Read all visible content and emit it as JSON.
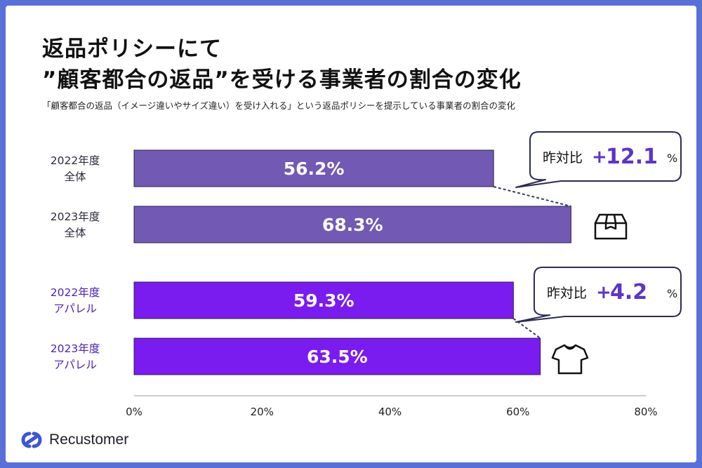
{
  "header": {
    "title_line1": "返品ポリシーにて",
    "title_line2": "”顧客都合の返品”を受ける事業者の割合の変化",
    "subtitle": "「顧客都合の返品（イメージ違いやサイズ違い）を受け入れる」という返品ポリシーを提示している事業者の割合の変化"
  },
  "brand": {
    "name": "Recustomer"
  },
  "colors": {
    "overall_bar": "#7159b4",
    "apparel_bar": "#7a1bf0",
    "overall_label": "#2b2b3c",
    "apparel_label": "#4a21b8",
    "callout_number": "#5b36c9",
    "logo": "#3b55d9"
  },
  "chart_data": {
    "type": "bar",
    "orientation": "horizontal",
    "unit": "%",
    "xlim": [
      0,
      80
    ],
    "ticks": [
      "0%",
      "20%",
      "40%",
      "60%",
      "80%"
    ],
    "bars": [
      {
        "label_line1": "2022年度",
        "label_line2": "全体",
        "value": 56.2,
        "value_label": "56.2%",
        "group": "overall"
      },
      {
        "label_line1": "2023年度",
        "label_line2": "全体",
        "value": 68.3,
        "value_label": "68.3%",
        "group": "overall"
      },
      {
        "label_line1": "2022年度",
        "label_line2": "アパレル",
        "value": 59.3,
        "value_label": "59.3%",
        "group": "apparel"
      },
      {
        "label_line1": "2023年度",
        "label_line2": "アパレル",
        "value": 63.5,
        "value_label": "63.5%",
        "group": "apparel"
      }
    ],
    "callouts": [
      {
        "prefix": "昨対比",
        "sign": "+",
        "number": "12.1",
        "unit": "%",
        "group": "overall",
        "icon": "box-icon"
      },
      {
        "prefix": "昨対比",
        "sign": "+",
        "number": "4.2",
        "unit": "%",
        "group": "apparel",
        "icon": "tshirt-icon"
      }
    ]
  }
}
